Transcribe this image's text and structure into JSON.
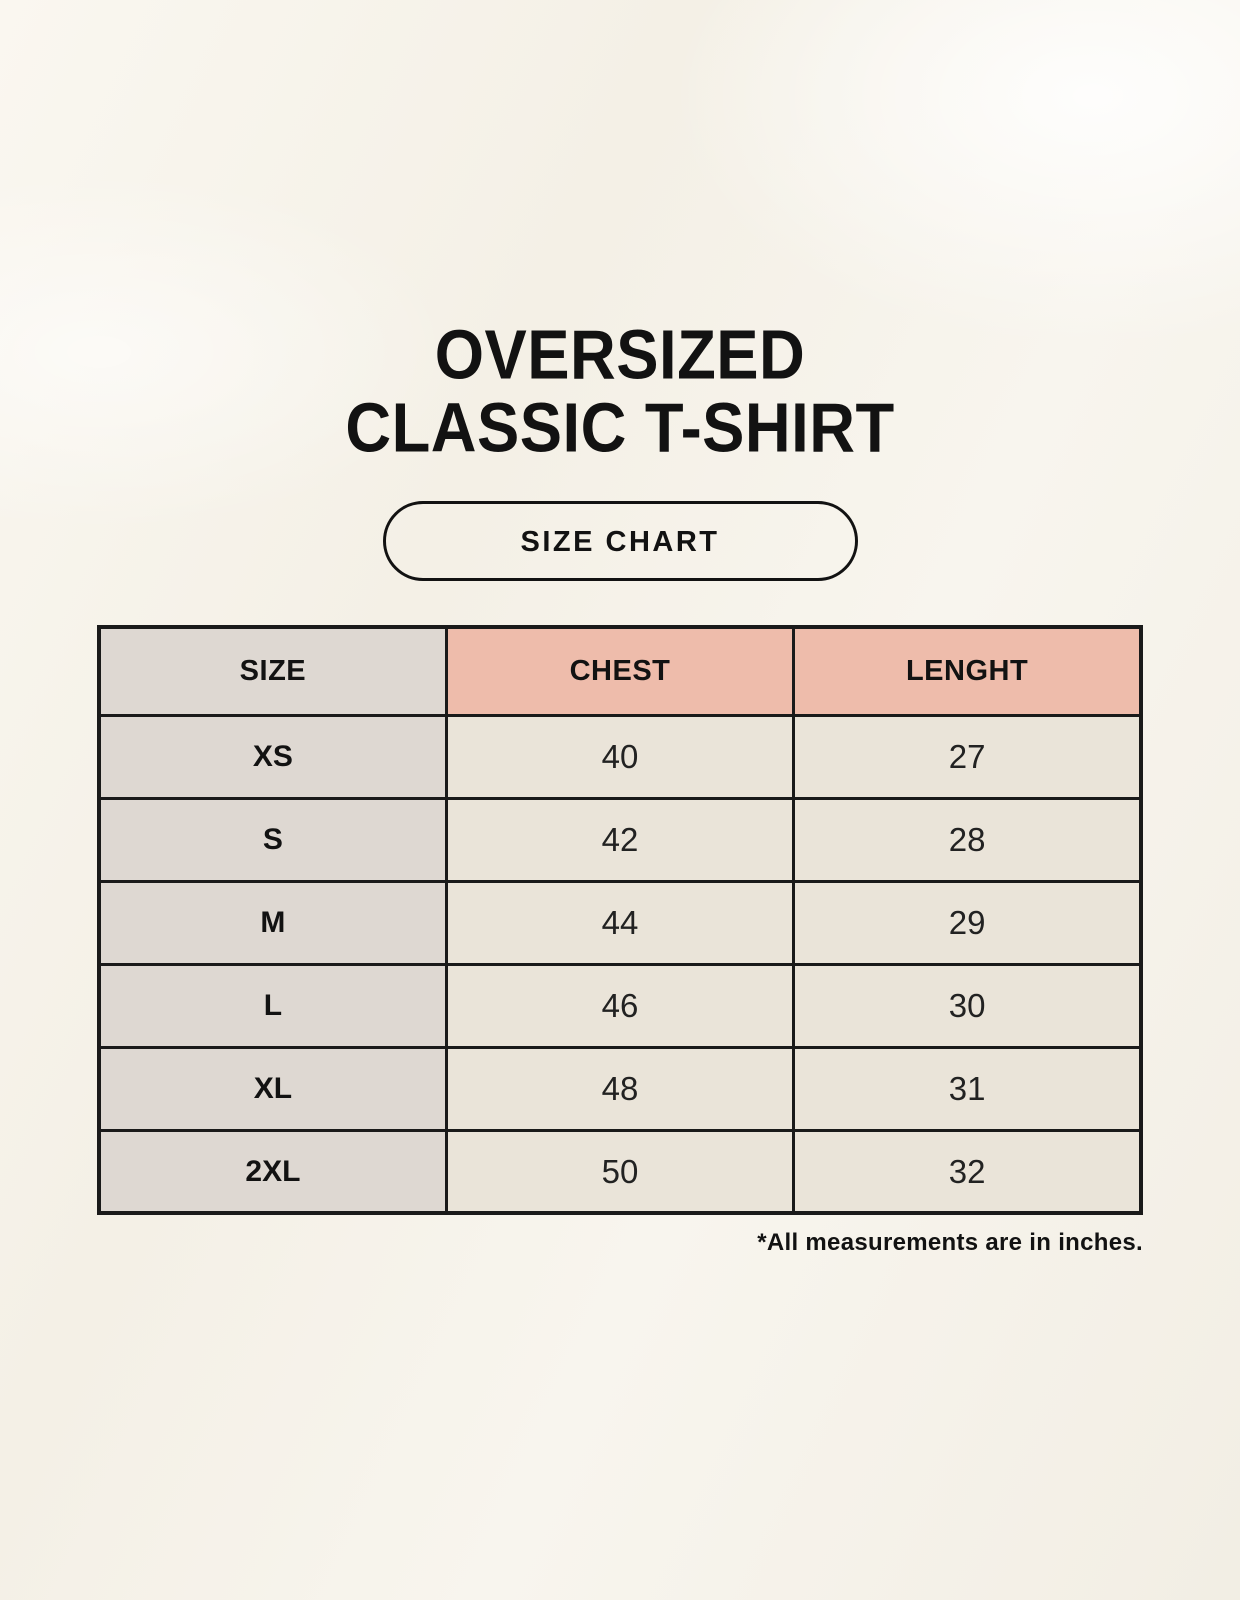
{
  "title": {
    "line1": "OVERSIZED",
    "line2": "CLASSIC T-SHIRT"
  },
  "button": {
    "label": "SIZE CHART"
  },
  "colors": {
    "page_background": "#f6f3ea",
    "size_column": "#ded8d2",
    "header_accent": "#eebcab",
    "value_cell": "#eae4d9",
    "border": "#1a1a1a",
    "text": "#121212"
  },
  "chart_data": {
    "type": "table",
    "title": "OVERSIZED CLASSIC T-SHIRT size chart",
    "columns": [
      "SIZE",
      "CHEST",
      "LENGHT"
    ],
    "rows": [
      [
        "XS",
        "40",
        "27"
      ],
      [
        "S",
        "42",
        "28"
      ],
      [
        "M",
        "44",
        "29"
      ],
      [
        "L",
        "46",
        "30"
      ],
      [
        "XL",
        "48",
        "31"
      ],
      [
        "2XL",
        "50",
        "32"
      ]
    ],
    "units": "inches",
    "footnote": "*All measurements are in inches."
  }
}
